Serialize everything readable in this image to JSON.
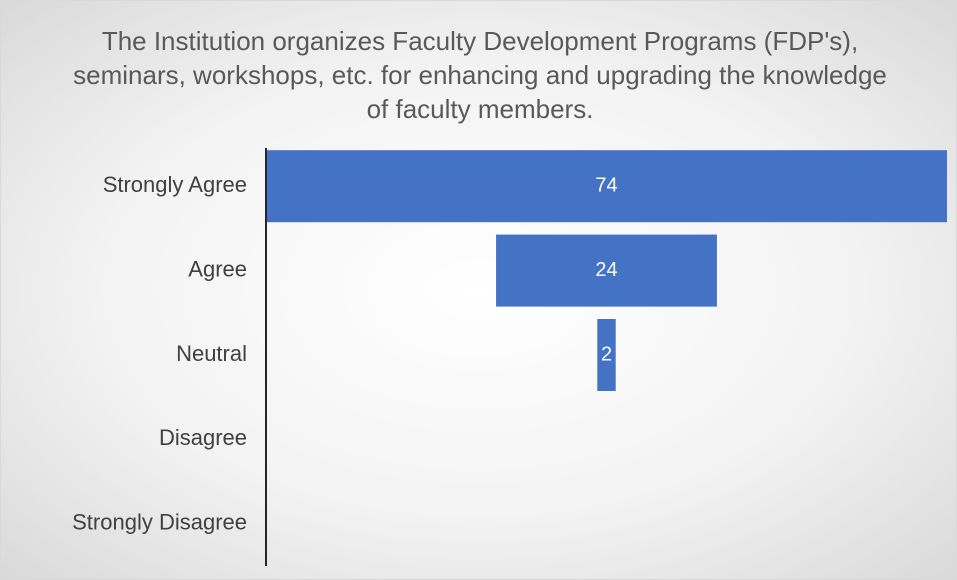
{
  "chart_data": {
    "type": "funnel",
    "title": "The Institution organizes Faculty Development Programs (FDP's), seminars, workshops, etc. for enhancing and upgrading the knowledge of faculty members.",
    "categories": [
      "Strongly Agree",
      "Agree",
      "Neutral",
      "Disagree",
      "Strongly Disagree"
    ],
    "values": [
      74,
      24,
      2,
      null,
      null
    ],
    "color": "#4472c4"
  }
}
